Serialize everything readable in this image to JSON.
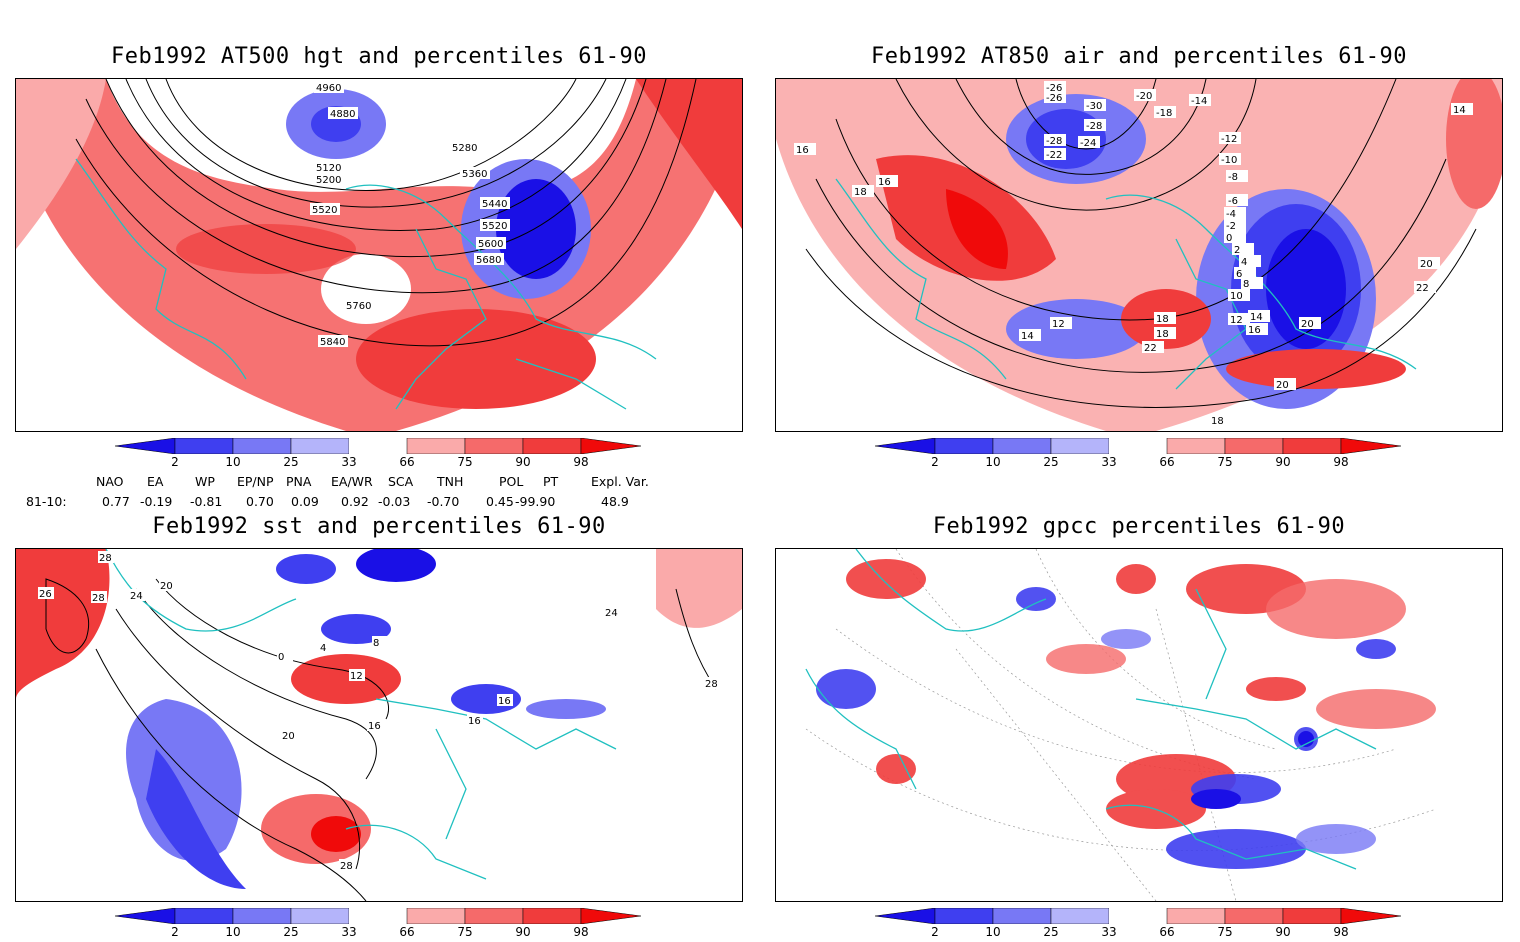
{
  "panels": [
    {
      "id": "hgt500",
      "title": "Feb1992 AT500 hgt and percentiles 61-90",
      "contour_labels": [
        "4960",
        "4880",
        "5120",
        "5200",
        "5280",
        "5360",
        "5440",
        "5520",
        "5520",
        "5600",
        "5680",
        "5760",
        "5840"
      ]
    },
    {
      "id": "air850",
      "title": "Feb1992 AT850 air and percentiles 61-90",
      "contour_labels": [
        "-26",
        "-26",
        "-30",
        "-20",
        "-14",
        "-28",
        "-24",
        "-28",
        "-18",
        "-22",
        "-12",
        "-10",
        "-8",
        "-6",
        "-4",
        "-2",
        "0",
        "2",
        "4",
        "6",
        "8",
        "10",
        "12",
        "12",
        "14",
        "14",
        "16",
        "18",
        "18",
        "20",
        "22",
        "22",
        "20",
        "18",
        "16",
        "16",
        "18",
        "14",
        "20"
      ]
    },
    {
      "id": "sst",
      "title": "Feb1992 sst and percentiles 61-90",
      "contour_labels": [
        "26",
        "28",
        "28",
        "24",
        "20",
        "0",
        "4",
        "8",
        "12",
        "16",
        "16",
        "16",
        "20",
        "28",
        "24",
        "28"
      ]
    },
    {
      "id": "gpcc",
      "title": "Feb1992 gpcc percentiles 61-90",
      "contour_labels": []
    }
  ],
  "colorbar": {
    "ticks": [
      "2",
      "10",
      "25",
      "33",
      "66",
      "75",
      "90",
      "98"
    ],
    "colors": [
      "#1a10e6",
      "#3f3ff0",
      "#7878f5",
      "#b4b4fa",
      "#ffffff",
      "#faaaaa",
      "#f56a6a",
      "#f03c3c",
      "#f00a0a"
    ]
  },
  "indices": {
    "headers": [
      "NAO",
      "EA",
      "WP",
      "EP/NP",
      "PNA",
      "EA/WR",
      "SCA",
      "TNH",
      "POL",
      "PT",
      "Expl. Var."
    ],
    "row_label": "81-10:",
    "values": [
      "0.77",
      "-0.19",
      "-0.81",
      "0.70",
      "0.09",
      "0.92",
      "-0.03",
      "-0.70",
      "0.45",
      "-99.90",
      "48.9"
    ]
  },
  "colors": {
    "land_outline": "#20c0c0",
    "warm": "#f03c3c",
    "cold": "#3f3ff0"
  }
}
